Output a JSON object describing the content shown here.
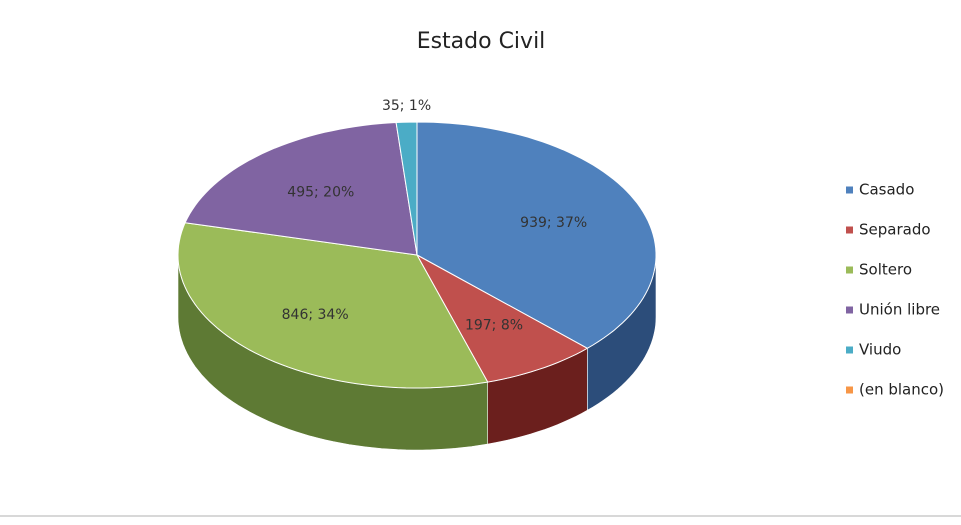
{
  "chart_data": {
    "type": "pie",
    "title": "Estado Civil",
    "categories": [
      "Casado",
      "Separado",
      "Soltero",
      "Unión libre",
      "Viudo",
      "(en blanco)"
    ],
    "values": [
      939,
      197,
      846,
      495,
      35,
      0
    ],
    "value_labels": [
      "939; 37%",
      "197; 8%",
      "846; 34%",
      "495; 20%",
      "35; 1%",
      null
    ],
    "colors": [
      "#4f81bd",
      "#c0504d",
      "#9bbb59",
      "#8064a2",
      "#4bacc6",
      "#f79646"
    ],
    "side_colors": [
      "#2c4d7a",
      "#6b1f1d",
      "#5e7a34",
      "#4a3568",
      "#2a7a8e",
      "#b0621f"
    ],
    "legend": "right"
  }
}
